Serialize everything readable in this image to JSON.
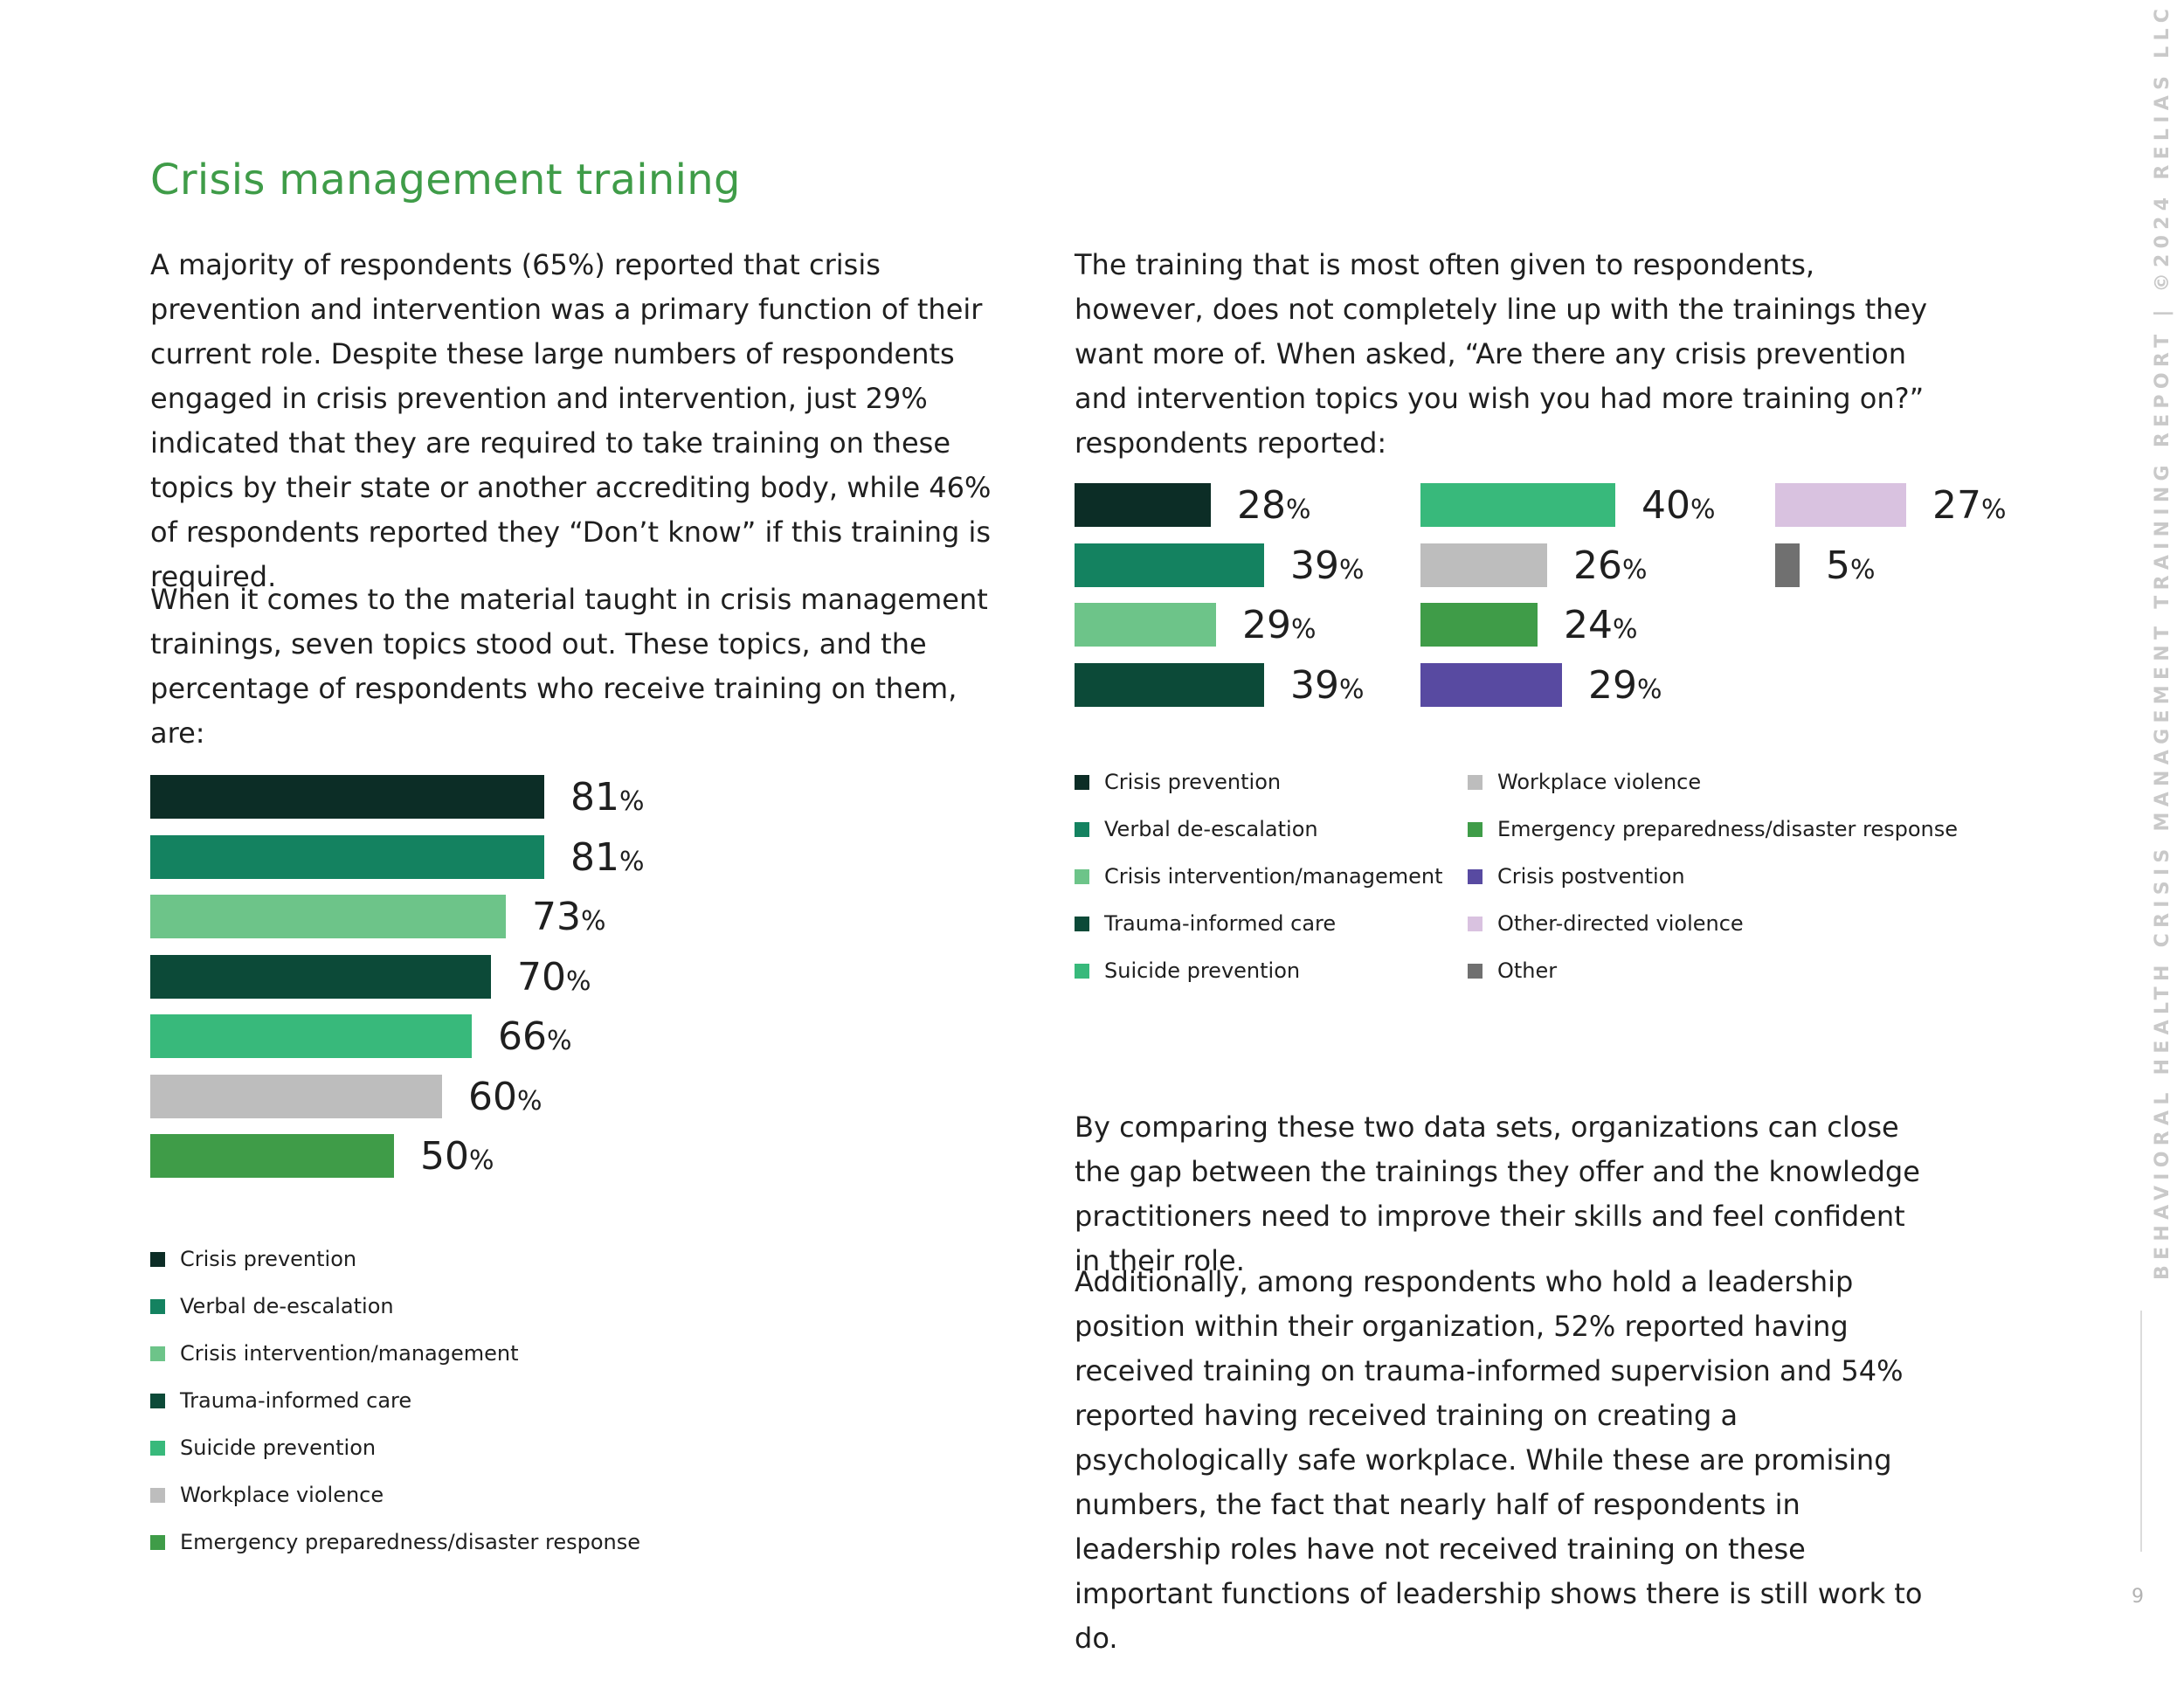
{
  "title": "Crisis management training",
  "left_paragraphs": [
    "A majority of respondents (65%) reported that crisis prevention and intervention was a primary function of their current role. Despite these large numbers of respondents engaged in crisis prevention and intervention, just 29% indicated that they are required to take training on these topics by their state or another accrediting body, while 46% of respondents reported they “Don’t know” if this training is required.",
    "When it comes to the material taught in crisis management trainings, seven topics stood out. These topics, and the percentage of respondents who receive training on them, are:"
  ],
  "right_intro": "The training that is most often given to respondents, however, does not completely line up with the trainings they want more of.  When asked, “Are there any crisis prevention and intervention topics you wish you had more training on?” respondents reported:",
  "right_paragraphs": [
    "By comparing these two data sets, organizations can close the gap between the trainings they offer and the knowledge practitioners need to improve their skills and feel confident in their role.",
    "Additionally, among respondents who hold a leadership position within their organization, 52% reported having received training on trauma-informed supervision and 54% reported having received training on creating a psychologically safe workplace. While these are promising numbers, the fact that nearly half of respondents in leadership roles have not received training on these important functions of leadership shows there is still work to do."
  ],
  "percent_symbol": "%",
  "chart_data": [
    {
      "type": "bar",
      "orientation": "horizontal",
      "categories": [
        "Crisis prevention",
        "Verbal de-escalation",
        "Crisis intervention/management",
        "Trauma-informed care",
        "Suicide prevention",
        "Workplace violence",
        "Emergency preparedness/disaster response"
      ],
      "values": [
        81,
        81,
        73,
        70,
        66,
        60,
        50
      ],
      "colors": [
        "#0c2d26",
        "#148260",
        "#6dc489",
        "#0c4a38",
        "#38b97b",
        "#bdbdbd",
        "#3f9c48"
      ],
      "legend": "bottom"
    },
    {
      "type": "bar",
      "orientation": "horizontal",
      "categories": [
        "Crisis prevention",
        "Verbal de-escalation",
        "Crisis intervention/management",
        "Trauma-informed care",
        "Suicide prevention",
        "Workplace violence",
        "Emergency preparedness/disaster response",
        "Crisis postvention",
        "Other-directed violence",
        "Other"
      ],
      "values": [
        28,
        39,
        29,
        39,
        40,
        26,
        24,
        29,
        27,
        5
      ],
      "colors": [
        "#0c2d26",
        "#148260",
        "#6dc489",
        "#0c4a38",
        "#38b97b",
        "#bdbdbd",
        "#3f9c48",
        "#584aa1",
        "#d9c2e0",
        "#707070"
      ],
      "legend": "bottom"
    }
  ],
  "sidebar_text": "BEHAVIORAL HEALTH CRISIS MANAGEMENT TRAINING REPORT  |  ©2024 RELIAS LLC",
  "page_number": "9"
}
